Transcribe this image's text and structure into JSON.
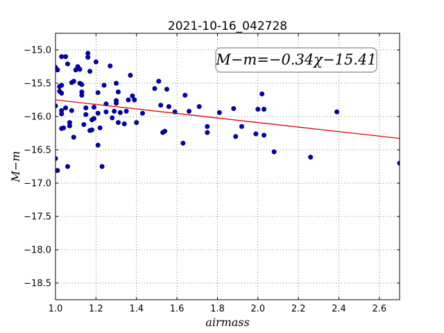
{
  "chart_data": {
    "type": "scatter",
    "title": "2021-10-16_042728",
    "xlabel": "airmass",
    "ylabel": "M−m",
    "xlim": [
      1.0,
      2.7
    ],
    "ylim": [
      -18.75,
      -14.75
    ],
    "x_ticks": [
      1.0,
      1.2,
      1.4,
      1.6,
      1.8,
      2.0,
      2.2,
      2.4,
      2.6
    ],
    "x_tick_labels": [
      "1.0",
      "1.2",
      "1.4",
      "1.6",
      "1.8",
      "2.0",
      "2.2",
      "2.4",
      "2.6"
    ],
    "y_ticks": [
      -15.0,
      -15.5,
      -16.0,
      -16.5,
      -17.0,
      -17.5,
      -18.0,
      -18.5
    ],
    "y_tick_labels": [
      "−15.0",
      "−15.5",
      "−16.0",
      "−16.5",
      "−17.0",
      "−17.5",
      "−18.0",
      "−18.5"
    ],
    "grid": true,
    "point_color": "#0000cc",
    "line_color": "#dd0000",
    "fit": {
      "slope": -0.34,
      "intercept": -15.41
    },
    "annotation": "M−m=−0.34χ−15.41",
    "points": [
      [
        1.0,
        -15.26
      ],
      [
        1.01,
        -15.3
      ],
      [
        1.0,
        -15.84
      ],
      [
        1.0,
        -16.63
      ],
      [
        1.01,
        -16.81
      ],
      [
        1.02,
        -15.55
      ],
      [
        1.02,
        -15.62
      ],
      [
        1.03,
        -15.1
      ],
      [
        1.03,
        -15.53
      ],
      [
        1.03,
        -15.65
      ],
      [
        1.03,
        -15.91
      ],
      [
        1.03,
        -15.96
      ],
      [
        1.03,
        -16.18
      ],
      [
        1.04,
        -16.17
      ],
      [
        1.05,
        -15.1
      ],
      [
        1.05,
        -15.87
      ],
      [
        1.06,
        -15.21
      ],
      [
        1.06,
        -16.75
      ],
      [
        1.07,
        -16.09
      ],
      [
        1.07,
        -16.14
      ],
      [
        1.08,
        -15.49
      ],
      [
        1.08,
        -15.91
      ],
      [
        1.09,
        -15.47
      ],
      [
        1.09,
        -16.31
      ],
      [
        1.1,
        -15.3
      ],
      [
        1.11,
        -15.25
      ],
      [
        1.12,
        -15.29
      ],
      [
        1.12,
        -15.5
      ],
      [
        1.13,
        -15.68
      ],
      [
        1.13,
        -15.52
      ],
      [
        1.13,
        -15.63
      ],
      [
        1.14,
        -16.12
      ],
      [
        1.15,
        -15.87
      ],
      [
        1.15,
        -15.97
      ],
      [
        1.16,
        -15.05
      ],
      [
        1.16,
        -15.11
      ],
      [
        1.17,
        -15.32
      ],
      [
        1.17,
        -16.21
      ],
      [
        1.18,
        -16.2
      ],
      [
        1.18,
        -16.05
      ],
      [
        1.19,
        -15.86
      ],
      [
        1.19,
        -16.03
      ],
      [
        1.2,
        -15.18
      ],
      [
        1.21,
        -15.64
      ],
      [
        1.21,
        -15.95
      ],
      [
        1.21,
        -16.43
      ],
      [
        1.22,
        -16.17
      ],
      [
        1.23,
        -16.75
      ],
      [
        1.24,
        -15.53
      ],
      [
        1.25,
        -15.81
      ],
      [
        1.25,
        -15.93
      ],
      [
        1.27,
        -15.24
      ],
      [
        1.28,
        -16.02
      ],
      [
        1.29,
        -15.92
      ],
      [
        1.3,
        -15.5
      ],
      [
        1.3,
        -15.76
      ],
      [
        1.3,
        -15.8
      ],
      [
        1.31,
        -15.63
      ],
      [
        1.31,
        -16.09
      ],
      [
        1.32,
        -15.94
      ],
      [
        1.34,
        -16.11
      ],
      [
        1.35,
        -15.92
      ],
      [
        1.36,
        -15.75
      ],
      [
        1.37,
        -15.38
      ],
      [
        1.38,
        -15.69
      ],
      [
        1.39,
        -15.75
      ],
      [
        1.4,
        -16.09
      ],
      [
        1.43,
        -15.95
      ],
      [
        1.49,
        -15.58
      ],
      [
        1.51,
        -15.47
      ],
      [
        1.52,
        -15.83
      ],
      [
        1.53,
        -16.24
      ],
      [
        1.54,
        -16.22
      ],
      [
        1.55,
        -15.59
      ],
      [
        1.56,
        -15.85
      ],
      [
        1.59,
        -15.93
      ],
      [
        1.63,
        -16.4
      ],
      [
        1.64,
        -15.68
      ],
      [
        1.66,
        -15.92
      ],
      [
        1.71,
        -15.85
      ],
      [
        1.75,
        -16.15
      ],
      [
        1.75,
        -16.24
      ],
      [
        1.81,
        -15.94
      ],
      [
        1.88,
        -15.88
      ],
      [
        1.89,
        -16.3
      ],
      [
        1.92,
        -16.15
      ],
      [
        1.99,
        -16.26
      ],
      [
        2.0,
        -15.89
      ],
      [
        2.02,
        -15.66
      ],
      [
        2.03,
        -15.89
      ],
      [
        2.03,
        -16.28
      ],
      [
        2.08,
        -16.53
      ],
      [
        2.26,
        -16.61
      ],
      [
        2.39,
        -15.93
      ],
      [
        2.7,
        -16.7
      ]
    ]
  }
}
